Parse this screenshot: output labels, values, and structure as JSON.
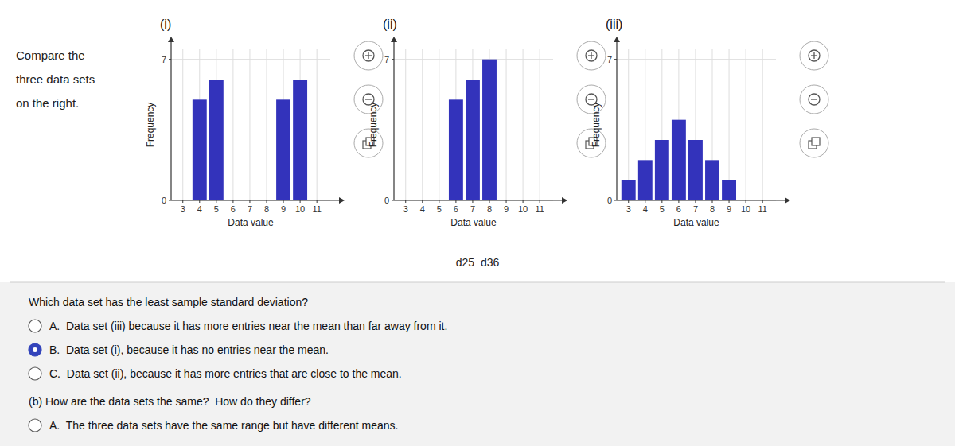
{
  "chart_data": [
    {
      "type": "bar",
      "title": "(i)",
      "xlabel": "Data value",
      "ylabel": "Frequency",
      "x": [
        3,
        4,
        5,
        6,
        7,
        8,
        9,
        10,
        11
      ],
      "values": [
        0,
        5,
        6,
        0,
        0,
        0,
        5,
        6,
        0
      ],
      "color": "#3333bb",
      "xlim": [
        2.3,
        11.8
      ],
      "ylim": [
        0,
        7.5
      ],
      "xticks": [
        3,
        4,
        5,
        6,
        7,
        8,
        9,
        10,
        11
      ],
      "yticks": [
        0,
        7
      ],
      "grid": true
    },
    {
      "type": "bar",
      "title": "(ii)",
      "xlabel": "Data value",
      "ylabel": "Frequency",
      "x": [
        3,
        4,
        5,
        6,
        7,
        8,
        9,
        10,
        11
      ],
      "values": [
        0,
        0,
        0,
        5,
        6,
        7,
        0,
        0,
        0
      ],
      "color": "#3333bb",
      "xlim": [
        2.3,
        11.8
      ],
      "ylim": [
        0,
        7.5
      ],
      "xticks": [
        3,
        4,
        5,
        6,
        7,
        8,
        9,
        10,
        11
      ],
      "yticks": [
        0,
        7
      ],
      "grid": true
    },
    {
      "type": "bar",
      "title": "(iii)",
      "xlabel": "Data value",
      "ylabel": "Frequency",
      "x": [
        3,
        4,
        5,
        6,
        7,
        8,
        9,
        10,
        11
      ],
      "values": [
        1,
        2,
        3,
        4,
        3,
        2,
        1,
        0,
        0
      ],
      "color": "#3333bb",
      "xlim": [
        2.3,
        11.8
      ],
      "ylim": [
        0,
        7.5
      ],
      "xticks": [
        3,
        4,
        5,
        6,
        7,
        8,
        9,
        10,
        11
      ],
      "yticks": [
        0,
        7
      ],
      "grid": true
    }
  ],
  "intro": [
    "Compare the",
    "three data sets",
    "on the right."
  ],
  "caption": "d25  d36",
  "questions": [
    {
      "text": "Which data set has the least sample standard deviation?",
      "options": [
        {
          "text": "A.  Data set (iii) because it has more entries near the mean than far away from it.",
          "selected": false
        },
        {
          "text": "B.  Data set (i), because it has no entries near the mean.",
          "selected": true
        },
        {
          "text": "C.  Data set (ii), because it has more entries that are close to the mean.",
          "selected": false
        }
      ]
    },
    {
      "text": "(b) How are the data sets the same?  How do they differ?",
      "options": [
        {
          "text": "A.  The three data sets have the same range but have different means.",
          "selected": false
        }
      ]
    }
  ]
}
